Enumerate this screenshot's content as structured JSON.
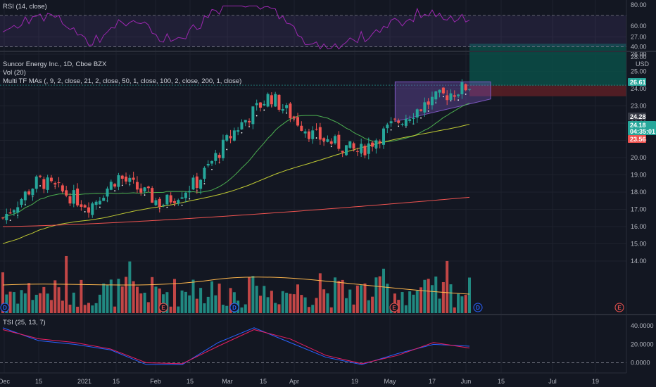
{
  "colors": {
    "background": "#131722",
    "grid": "#1e222d",
    "up": "#26a69a",
    "down": "#ef5350",
    "rsi_line": "#9c27b0",
    "rsi_band": "#7e57c2",
    "ma_fast": "#ffffff",
    "ma_21": "#4caf50",
    "ma_50": "#c0ca33",
    "ma_100": "#ef5350",
    "vol_ma": "#ffb74d",
    "tsi_line": "#2962ff",
    "tsi_signal": "#e91e63",
    "pattern": "#7e57c2",
    "target_zone": "#0b4d47",
    "stop_zone": "#5c1f24"
  },
  "legend": {
    "rsi": "RSI (14, close)",
    "symbol": "Suncor Energy Inc., 1D, Cboe BZX",
    "vol": "Vol (20)",
    "mas": "Multi TF MAs (, 9, 2, close, 21, 2, close, 50, 1, close, 100, 2, close, 200, 1, close)",
    "tsi": "TSI (25, 13, 7)"
  },
  "price_axis": {
    "currency": "USD",
    "ticks": [
      "27.00",
      "26.00",
      "25.00",
      "24.00",
      "23.00",
      "22.00",
      "21.00",
      "20.00",
      "19.00",
      "18.00",
      "17.00",
      "16.00",
      "15.00",
      "14.00"
    ],
    "cut_tick": "28.00"
  },
  "rsi_axis": {
    "ticks": [
      "80.00",
      "60.00",
      "40.00"
    ]
  },
  "tsi_axis": {
    "ticks": [
      "40.0000",
      "20.0000",
      "0.0000"
    ]
  },
  "price_tags": {
    "target": "26.61",
    "last": "24.28",
    "current": "24.18",
    "countdown": "04:35:01",
    "stop": "23.56"
  },
  "time_axis": [
    "Dec",
    "15",
    "2021",
    "15",
    "Feb",
    "15",
    "Mar",
    "15",
    "Apr",
    "19",
    "May",
    "17",
    "Jun",
    "15",
    "Jul",
    "19"
  ],
  "event_markers": [
    "D",
    "E",
    "D",
    "E",
    "D",
    "E"
  ],
  "chart_data": [
    {
      "type": "candlestick",
      "title": "Suncor Energy Inc., 1D, Cboe BZX",
      "ylabel": "USD",
      "ylim": [
        13.5,
        28
      ],
      "x_start": "2020-12-01",
      "x_end": "2021-06-01",
      "approximate_closes": [
        {
          "x": "2020-12-01",
          "y": 16.5
        },
        {
          "x": "2020-12-15",
          "y": 18.7
        },
        {
          "x": "2021-01-04",
          "y": 17.2
        },
        {
          "x": "2021-01-15",
          "y": 18.9
        },
        {
          "x": "2021-02-01",
          "y": 17.3
        },
        {
          "x": "2021-02-15",
          "y": 18.6
        },
        {
          "x": "2021-03-01",
          "y": 21.5
        },
        {
          "x": "2021-03-15",
          "y": 23.6
        },
        {
          "x": "2021-04-01",
          "y": 21.3
        },
        {
          "x": "2021-04-19",
          "y": 20.3
        },
        {
          "x": "2021-05-03",
          "y": 22.0
        },
        {
          "x": "2021-05-17",
          "y": 23.3
        },
        {
          "x": "2021-06-01",
          "y": 24.18
        }
      ],
      "moving_averages": [
        {
          "name": "MA 50",
          "start": 14.0,
          "end": 21.9
        },
        {
          "name": "MA 200",
          "start": 16.0,
          "end": 17.7
        }
      ],
      "pattern_box": {
        "from": "2021-05-03",
        "to": "2021-06-01",
        "low": 23.0,
        "high": 24.4
      },
      "position": {
        "entry": 24.18,
        "target": 26.61,
        "stop": 23.56
      }
    },
    {
      "type": "line",
      "title": "RSI (14, close)",
      "ylim": [
        35,
        82
      ],
      "band": [
        40,
        70
      ]
    },
    {
      "type": "line",
      "title": "TSI (25, 13, 7)",
      "ylim": [
        -8,
        44
      ],
      "series": [
        {
          "name": "TSI",
          "values": [
            38,
            24,
            20,
            14,
            -2,
            -2,
            22,
            38,
            22,
            6,
            -2,
            10,
            20,
            18
          ]
        },
        {
          "name": "Signal",
          "values": [
            36,
            26,
            22,
            15,
            0,
            -1,
            18,
            36,
            26,
            8,
            -1,
            8,
            22,
            16
          ]
        }
      ]
    }
  ]
}
